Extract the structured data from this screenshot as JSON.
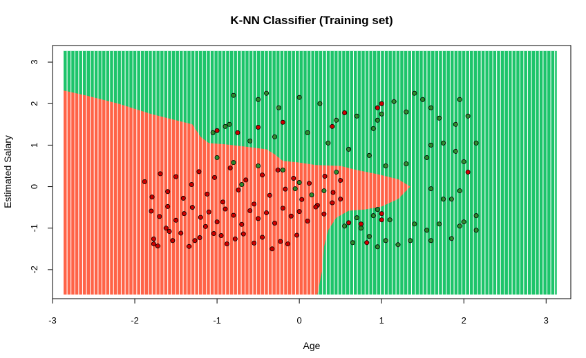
{
  "chart_data": {
    "type": "scatter",
    "title": "K-NN Classifier (Training set)",
    "xlabel": "Age",
    "ylabel": "Estimated Salary",
    "xlim": [
      -3,
      3.3
    ],
    "ylim": [
      -2.7,
      3.4
    ],
    "xticks": [
      -3,
      -2,
      -1,
      0,
      1,
      2,
      3
    ],
    "yticks": [
      -2,
      -1,
      0,
      1,
      2,
      3
    ],
    "grid": false,
    "legend": "none",
    "colors": {
      "region_class_0": "#FF6347",
      "region_class_1": "#1DC46A",
      "point_class_0": "#CC0000",
      "point_class_1": "#2E8B2E",
      "point_edge": "#000000"
    },
    "grid_range": {
      "x": [
        -2.87,
        3.13
      ],
      "y": [
        -2.6,
        3.27
      ]
    },
    "decision_boundary": [
      [
        -2.87,
        2.32
      ],
      [
        -2.6,
        2.2
      ],
      [
        -2.2,
        2.0
      ],
      [
        -1.8,
        1.75
      ],
      [
        -1.5,
        1.6
      ],
      [
        -1.3,
        1.5
      ],
      [
        -1.2,
        1.2
      ],
      [
        -1.1,
        1.05
      ],
      [
        -0.9,
        1.02
      ],
      [
        -0.6,
        0.95
      ],
      [
        -0.4,
        0.9
      ],
      [
        -0.3,
        0.78
      ],
      [
        -0.2,
        0.62
      ],
      [
        0.0,
        0.58
      ],
      [
        0.2,
        0.52
      ],
      [
        0.5,
        0.5
      ],
      [
        0.7,
        0.4
      ],
      [
        0.95,
        0.3
      ],
      [
        1.2,
        0.18
      ],
      [
        1.35,
        0.0
      ],
      [
        1.2,
        -0.3
      ],
      [
        1.0,
        -0.48
      ],
      [
        0.8,
        -0.55
      ],
      [
        0.6,
        -0.58
      ],
      [
        0.45,
        -0.75
      ],
      [
        0.35,
        -1.05
      ],
      [
        0.3,
        -1.45
      ],
      [
        0.28,
        -2.0
      ],
      [
        0.22,
        -2.6
      ]
    ],
    "series": [
      {
        "class": 0,
        "points": [
          [
            -1.77,
            -1.38
          ],
          [
            -1.77,
            -1.26
          ],
          [
            -1.72,
            -1.43
          ],
          [
            -1.62,
            -1.0
          ],
          [
            -1.58,
            -1.08
          ],
          [
            -1.54,
            -1.3
          ],
          [
            -1.44,
            -1.12
          ],
          [
            -1.34,
            -1.44
          ],
          [
            -1.27,
            -1.3
          ],
          [
            -1.21,
            -1.23
          ],
          [
            -1.14,
            -0.96
          ],
          [
            -1.04,
            -1.13
          ],
          [
            -0.95,
            -1.18
          ],
          [
            -0.88,
            -1.38
          ],
          [
            -0.78,
            -1.26
          ],
          [
            -0.68,
            -1.14
          ],
          [
            -0.55,
            -1.36
          ],
          [
            -0.45,
            -1.22
          ],
          [
            -0.33,
            -1.5
          ],
          [
            -0.23,
            -1.32
          ],
          [
            -0.14,
            -1.38
          ],
          [
            -0.03,
            -1.17
          ],
          [
            -1.88,
            0.12
          ],
          [
            -1.79,
            -0.25
          ],
          [
            -1.69,
            0.31
          ],
          [
            -1.6,
            -0.12
          ],
          [
            -1.5,
            0.24
          ],
          [
            -1.41,
            -0.28
          ],
          [
            -1.31,
            0.05
          ],
          [
            -1.22,
            0.36
          ],
          [
            -1.12,
            -0.18
          ],
          [
            -1.03,
            0.22
          ],
          [
            -0.93,
            -0.37
          ],
          [
            -0.84,
            0.45
          ],
          [
            -0.74,
            -0.08
          ],
          [
            -0.65,
            0.16
          ],
          [
            -0.55,
            -0.42
          ],
          [
            -0.45,
            0.28
          ],
          [
            -0.36,
            -0.21
          ],
          [
            -0.26,
            0.4
          ],
          [
            -0.17,
            -0.06
          ],
          [
            -0.07,
            0.2
          ],
          [
            0.03,
            -0.31
          ],
          [
            0.12,
            0.08
          ],
          [
            0.22,
            -0.45
          ],
          [
            0.31,
            0.25
          ],
          [
            0.41,
            -0.14
          ],
          [
            0.5,
            0.15
          ],
          [
            -1.8,
            -0.59
          ],
          [
            -1.7,
            -0.72
          ],
          [
            -1.6,
            -0.48
          ],
          [
            -1.5,
            -0.81
          ],
          [
            -1.4,
            -0.65
          ],
          [
            -1.3,
            -0.5
          ],
          [
            -1.2,
            -0.74
          ],
          [
            -1.1,
            -0.61
          ],
          [
            -1.0,
            -0.85
          ],
          [
            -0.9,
            -0.54
          ],
          [
            -0.8,
            -0.69
          ],
          [
            -0.7,
            -0.91
          ],
          [
            -0.6,
            -0.58
          ],
          [
            -0.5,
            -0.77
          ],
          [
            -0.4,
            -0.63
          ],
          [
            -0.3,
            -0.88
          ],
          [
            -0.2,
            -0.52
          ],
          [
            -0.1,
            -0.71
          ],
          [
            0.0,
            -0.6
          ],
          [
            0.1,
            -0.83
          ],
          [
            0.2,
            -0.49
          ],
          [
            0.3,
            -0.66
          ],
          [
            0.4,
            -0.39
          ],
          [
            0.5,
            -0.3
          ],
          [
            -1.0,
            1.35
          ],
          [
            -0.75,
            1.3
          ],
          [
            -0.5,
            1.43
          ],
          [
            -0.2,
            1.55
          ],
          [
            0.4,
            1.45
          ],
          [
            0.55,
            1.78
          ],
          [
            1.0,
            2.0
          ],
          [
            0.95,
            1.9
          ],
          [
            2.05,
            0.35
          ],
          [
            1.0,
            -0.8
          ],
          [
            1.0,
            -0.65
          ],
          [
            0.82,
            -1.35
          ],
          [
            0.75,
            -0.9
          ],
          [
            0.6,
            -0.87
          ]
        ]
      },
      {
        "class": 1,
        "points": [
          [
            -0.8,
            2.2
          ],
          [
            -0.5,
            2.1
          ],
          [
            -0.4,
            2.25
          ],
          [
            -0.25,
            1.9
          ],
          [
            0.0,
            2.15
          ],
          [
            0.25,
            2.0
          ],
          [
            0.45,
            1.6
          ],
          [
            0.7,
            1.7
          ],
          [
            0.9,
            1.4
          ],
          [
            1.15,
            2.05
          ],
          [
            1.3,
            1.8
          ],
          [
            1.4,
            2.25
          ],
          [
            1.5,
            2.1
          ],
          [
            1.6,
            1.9
          ],
          [
            1.7,
            1.65
          ],
          [
            1.9,
            1.5
          ],
          [
            1.95,
            2.1
          ],
          [
            2.05,
            1.7
          ],
          [
            1.0,
            1.75
          ],
          [
            0.95,
            1.6
          ],
          [
            -0.9,
            1.45
          ],
          [
            -0.6,
            1.1
          ],
          [
            -0.3,
            1.2
          ],
          [
            0.1,
            1.3
          ],
          [
            0.35,
            1.05
          ],
          [
            0.6,
            0.9
          ],
          [
            0.85,
            0.75
          ],
          [
            1.05,
            0.5
          ],
          [
            1.3,
            0.55
          ],
          [
            1.55,
            0.7
          ],
          [
            1.6,
            1.0
          ],
          [
            1.75,
            1.05
          ],
          [
            1.9,
            0.85
          ],
          [
            2.0,
            0.6
          ],
          [
            2.15,
            1.05
          ],
          [
            1.95,
            -0.1
          ],
          [
            1.85,
            -0.3
          ],
          [
            1.6,
            -0.05
          ],
          [
            1.75,
            -0.3
          ],
          [
            1.4,
            -0.9
          ],
          [
            1.55,
            -1.05
          ],
          [
            1.7,
            -0.9
          ],
          [
            1.95,
            -0.95
          ],
          [
            2.0,
            -0.85
          ],
          [
            2.15,
            -0.7
          ],
          [
            2.15,
            -1.05
          ],
          [
            1.85,
            -1.25
          ],
          [
            1.6,
            -1.3
          ],
          [
            1.35,
            -1.3
          ],
          [
            1.2,
            -1.4
          ],
          [
            1.05,
            -1.3
          ],
          [
            0.95,
            -1.45
          ],
          [
            0.85,
            -1.2
          ],
          [
            0.75,
            -1.0
          ],
          [
            0.95,
            -0.55
          ],
          [
            1.1,
            -0.8
          ],
          [
            0.7,
            -0.75
          ],
          [
            0.65,
            -1.35
          ],
          [
            0.55,
            -0.95
          ],
          [
            0.9,
            -0.7
          ],
          [
            -1.0,
            0.7
          ],
          [
            -0.8,
            0.58
          ],
          [
            -0.5,
            0.5
          ],
          [
            -0.2,
            0.4
          ],
          [
            0.0,
            0.1
          ],
          [
            -0.05,
            -0.05
          ],
          [
            0.15,
            -0.2
          ],
          [
            0.3,
            -0.1
          ],
          [
            0.45,
            0.35
          ],
          [
            -1.05,
            1.3
          ],
          [
            -0.85,
            1.5
          ],
          [
            -0.7,
            0.05
          ]
        ]
      }
    ]
  }
}
